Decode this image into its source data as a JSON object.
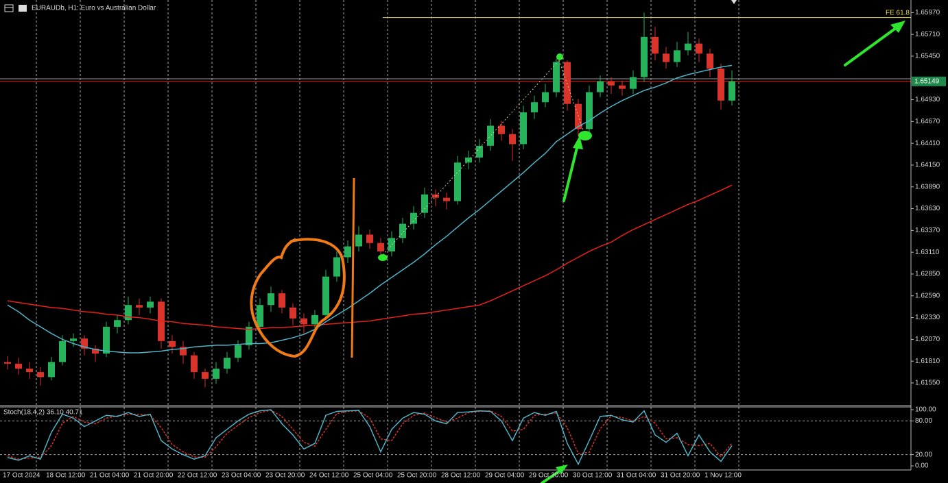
{
  "chart_data": {
    "type": "candlestick",
    "title": "EURAUDb, H1: Euro vs Australian Dollar",
    "bull_color": "#27b35c",
    "bear_color": "#d9342b",
    "open": [
      1.618,
      1.6178,
      1.6172,
      1.6168,
      1.6162,
      1.618,
      1.6205,
      1.6208,
      1.6196,
      1.619,
      1.6222,
      1.623,
      1.6248,
      1.6245,
      1.6252,
      1.6205,
      1.6198,
      1.6188,
      1.6168,
      1.616,
      1.6172,
      1.6185,
      1.62,
      1.6222,
      1.6248,
      1.6262,
      1.6245,
      1.6232,
      1.6225,
      1.6236,
      1.6282,
      1.6305,
      1.6318,
      1.6332,
      1.6322,
      1.6312,
      1.6328,
      1.6345,
      1.6358,
      1.638,
      1.6376,
      1.6372,
      1.6418,
      1.6424,
      1.6438,
      1.6462,
      1.6452,
      1.644,
      1.6478,
      1.649,
      1.6502,
      1.6538,
      1.6488,
      1.6458,
      1.6502,
      1.6515,
      1.651,
      1.6506,
      1.652,
      1.6568,
      1.6548,
      1.6538,
      1.6552,
      1.656,
      1.6548,
      1.653,
      1.6492
    ],
    "high": [
      1.6187,
      1.6185,
      1.618,
      1.6174,
      1.6186,
      1.6212,
      1.6214,
      1.6212,
      1.62,
      1.6228,
      1.6236,
      1.6258,
      1.6256,
      1.6258,
      1.6256,
      1.6212,
      1.6205,
      1.6192,
      1.6172,
      1.618,
      1.6192,
      1.6206,
      1.6228,
      1.6256,
      1.627,
      1.6266,
      1.625,
      1.6238,
      1.6242,
      1.629,
      1.6312,
      1.6325,
      1.6342,
      1.6338,
      1.6328,
      1.6336,
      1.6352,
      1.6366,
      1.6388,
      1.6386,
      1.6382,
      1.6426,
      1.6432,
      1.6446,
      1.647,
      1.6468,
      1.6458,
      1.6486,
      1.6498,
      1.6512,
      1.6542,
      1.654,
      1.6494,
      1.651,
      1.6522,
      1.652,
      1.6516,
      1.6528,
      1.6597,
      1.658,
      1.6556,
      1.6562,
      1.6574,
      1.6566,
      1.6554,
      1.6536,
      1.6528
    ],
    "low": [
      1.6171,
      1.6165,
      1.616,
      1.6152,
      1.6158,
      1.6176,
      1.6198,
      1.6188,
      1.618,
      1.6186,
      1.6214,
      1.6225,
      1.6236,
      1.6238,
      1.6196,
      1.619,
      1.6178,
      1.616,
      1.615,
      1.6154,
      1.6166,
      1.618,
      1.6195,
      1.6218,
      1.624,
      1.6238,
      1.6224,
      1.6212,
      1.6218,
      1.623,
      1.6276,
      1.6298,
      1.6312,
      1.6315,
      1.6302,
      1.6306,
      1.6322,
      1.6338,
      1.6352,
      1.6366,
      1.6362,
      1.6368,
      1.641,
      1.6418,
      1.6432,
      1.6444,
      1.642,
      1.6434,
      1.647,
      1.6484,
      1.6496,
      1.648,
      1.645,
      1.6452,
      1.6496,
      1.65,
      1.6498,
      1.65,
      1.6514,
      1.654,
      1.653,
      1.6532,
      1.6546,
      1.6538,
      1.652,
      1.6481,
      1.6486
    ],
    "close": [
      1.6178,
      1.6172,
      1.6168,
      1.6162,
      1.618,
      1.6205,
      1.6208,
      1.6196,
      1.619,
      1.6222,
      1.623,
      1.6248,
      1.6245,
      1.6252,
      1.6205,
      1.6198,
      1.6188,
      1.6168,
      1.616,
      1.6172,
      1.6185,
      1.62,
      1.6222,
      1.6248,
      1.6262,
      1.6245,
      1.6232,
      1.6225,
      1.6236,
      1.6282,
      1.6305,
      1.6318,
      1.6332,
      1.6322,
      1.6312,
      1.6328,
      1.6345,
      1.6358,
      1.638,
      1.6376,
      1.6372,
      1.6418,
      1.6424,
      1.6438,
      1.6462,
      1.6452,
      1.644,
      1.6478,
      1.649,
      1.6502,
      1.6538,
      1.6488,
      1.6458,
      1.6502,
      1.6515,
      1.651,
      1.6506,
      1.652,
      1.6568,
      1.6548,
      1.6538,
      1.6552,
      1.656,
      1.6548,
      1.653,
      1.6492,
      1.6515
    ],
    "moving_averages": [
      {
        "color": "#e8211c",
        "values": [
          1.6253,
          1.6251,
          1.6249,
          1.6247,
          1.6245,
          1.6244,
          1.6242,
          1.624,
          1.6239,
          1.6237,
          1.6236,
          1.6234,
          1.6233,
          1.6231,
          1.6229,
          1.6228,
          1.6226,
          1.6225,
          1.6224,
          1.6222,
          1.6221,
          1.622,
          1.6219,
          1.622,
          1.6221,
          1.6221,
          1.6222,
          1.6223,
          1.6224,
          1.6225,
          1.6226,
          1.6227,
          1.6228,
          1.6229,
          1.6231,
          1.6233,
          1.6235,
          1.6237,
          1.6238,
          1.624,
          1.6242,
          1.6244,
          1.6246,
          1.6248,
          1.6253,
          1.6259,
          1.6265,
          1.6271,
          1.6277,
          1.6283,
          1.629,
          1.6298,
          1.6305,
          1.6312,
          1.6318,
          1.6323,
          1.6331,
          1.6338,
          1.6344,
          1.635,
          1.6356,
          1.6362,
          1.6368,
          1.6373,
          1.6379,
          1.6385,
          1.6391
        ]
      },
      {
        "color": "#4fb3c7",
        "values": [
          1.6248,
          1.624,
          1.623,
          1.6222,
          1.6214,
          1.6207,
          1.6202,
          1.6198,
          1.6195,
          1.6193,
          1.6192,
          1.6191,
          1.6191,
          1.6192,
          1.6193,
          1.6195,
          1.6196,
          1.6198,
          1.6199,
          1.62,
          1.62,
          1.6201,
          1.6202,
          1.6202,
          1.6203,
          1.6206,
          1.6209,
          1.6213,
          1.6219,
          1.6228,
          1.6236,
          1.6244,
          1.6253,
          1.6262,
          1.6272,
          1.6281,
          1.629,
          1.6299,
          1.6309,
          1.632,
          1.633,
          1.6341,
          1.6352,
          1.6362,
          1.6373,
          1.6384,
          1.6395,
          1.6406,
          1.6418,
          1.6429,
          1.6443,
          1.6452,
          1.6461,
          1.6468,
          1.6477,
          1.6485,
          1.6492,
          1.6498,
          1.6504,
          1.6508,
          1.6513,
          1.6519,
          1.6523,
          1.6526,
          1.6529,
          1.6532,
          1.6534
        ]
      }
    ],
    "ylim": [
      1.6128,
      1.6612
    ],
    "yticks": [
      {
        "value": 1.6597,
        "label": "1.65970"
      },
      {
        "value": 1.6571,
        "label": "1.65710"
      },
      {
        "value": 1.6545,
        "label": "1.65450"
      },
      {
        "value": 1.6493,
        "label": "1.64930"
      },
      {
        "value": 1.6467,
        "label": "1.64670"
      },
      {
        "value": 1.6441,
        "label": "1.64410"
      },
      {
        "value": 1.6415,
        "label": "1.64150"
      },
      {
        "value": 1.6389,
        "label": "1.63890"
      },
      {
        "value": 1.6363,
        "label": "1.63630"
      },
      {
        "value": 1.6337,
        "label": "1.63370"
      },
      {
        "value": 1.6311,
        "label": "1.63110"
      },
      {
        "value": 1.6285,
        "label": "1.62850"
      },
      {
        "value": 1.6259,
        "label": "1.62590"
      },
      {
        "value": 1.6233,
        "label": "1.62330"
      },
      {
        "value": 1.6207,
        "label": "1.62070"
      },
      {
        "value": 1.6181,
        "label": "1.61810"
      },
      {
        "value": 1.6155,
        "label": "1.61550"
      }
    ],
    "bid": 1.65149,
    "bid_color": "#e8211c",
    "ask": 1.6518,
    "fe": {
      "value": 1.6591,
      "label": "FE 61.8"
    },
    "fe_color": "#e8d84a",
    "grid": true,
    "time_labels": [
      "17 Oct 2024",
      "18 Oct 12:00",
      "21 Oct 04:00",
      "21 Oct 20:00",
      "22 Oct 12:00",
      "23 Oct 04:00",
      "23 Oct 20:00",
      "24 Oct 12:00",
      "25 Oct 04:00",
      "25 Oct 20:00",
      "28 Oct 12:00",
      "29 Oct 04:00",
      "29 Oct 20:00",
      "30 Oct 12:00",
      "31 Oct 04:00",
      "31 Oct 20:00",
      "1 Nov 12:00"
    ],
    "stochastic": {
      "title": "Stoch(18,4,2) 36.10 40.71",
      "ylim": [
        -7.3,
        104.9
      ],
      "yticks": [
        {
          "value": 100,
          "label": "100.00"
        },
        {
          "value": 80,
          "label": "80.00"
        },
        {
          "value": 20,
          "label": "20.00"
        },
        {
          "value": 0,
          "label": "0.00"
        }
      ],
      "levels": [
        80,
        20
      ],
      "main": {
        "color": "#4fb3c7",
        "values": [
          15,
          10,
          18,
          12,
          60,
          92,
          85,
          70,
          80,
          90,
          88,
          95,
          88,
          92,
          45,
          30,
          20,
          12,
          18,
          50,
          65,
          80,
          92,
          98,
          100,
          75,
          55,
          30,
          40,
          90,
          97,
          98,
          99,
          70,
          25,
          65,
          85,
          95,
          92,
          80,
          75,
          95,
          96,
          98,
          97,
          80,
          45,
          85,
          95,
          90,
          97,
          40,
          3,
          45,
          88,
          90,
          82,
          78,
          98,
          55,
          42,
          58,
          18,
          55,
          25,
          8,
          36.1
        ]
      },
      "signal": {
        "color": "#d9342b",
        "values": [
          18,
          12,
          14,
          15,
          36,
          76,
          88,
          78,
          75,
          85,
          89,
          92,
          92,
          90,
          68,
          38,
          25,
          16,
          15,
          34,
          58,
          72,
          86,
          95,
          99,
          88,
          65,
          42,
          35,
          65,
          93,
          97,
          98,
          85,
          48,
          45,
          75,
          90,
          94,
          86,
          78,
          85,
          95,
          97,
          98,
          88,
          62,
          65,
          90,
          92,
          94,
          68,
          22,
          24,
          66,
          89,
          86,
          80,
          88,
          76,
          48,
          50,
          38,
          36,
          40,
          16,
          40.71
        ]
      }
    }
  }
}
